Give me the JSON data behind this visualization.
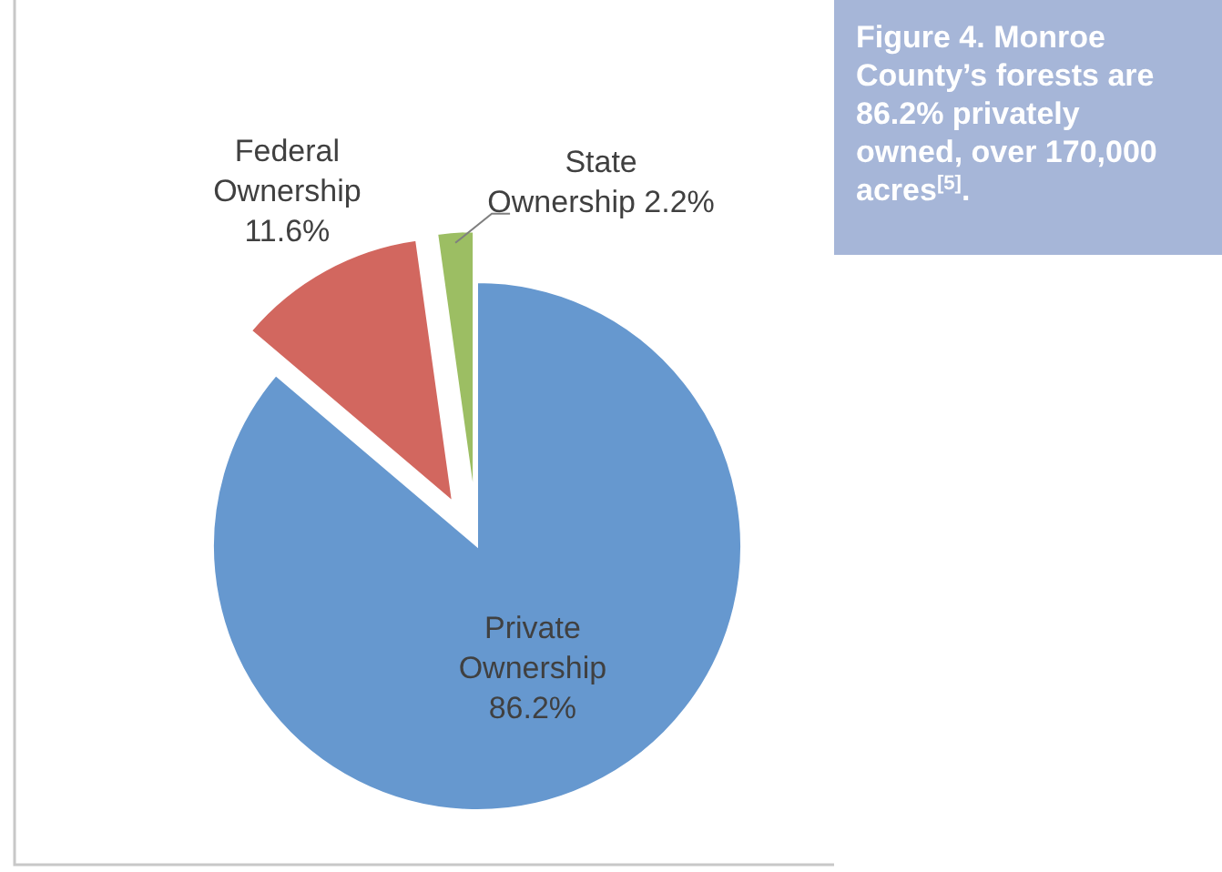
{
  "chart_data": {
    "type": "pie",
    "title": "Figure 4. Monroe County’s forests are 86.2% privately owned, over 170,000 acres$^{[5]}$.",
    "categories": [
      "Private Ownership",
      "Federal Ownership",
      "State Ownership"
    ],
    "values": [
      86.2,
      11.6,
      2.2
    ],
    "colors": [
      "#6698cf",
      "#d2675f",
      "#9cbe63"
    ],
    "value_labels": [
      "86.2%",
      "11.6%",
      "2.2%"
    ]
  }
}
